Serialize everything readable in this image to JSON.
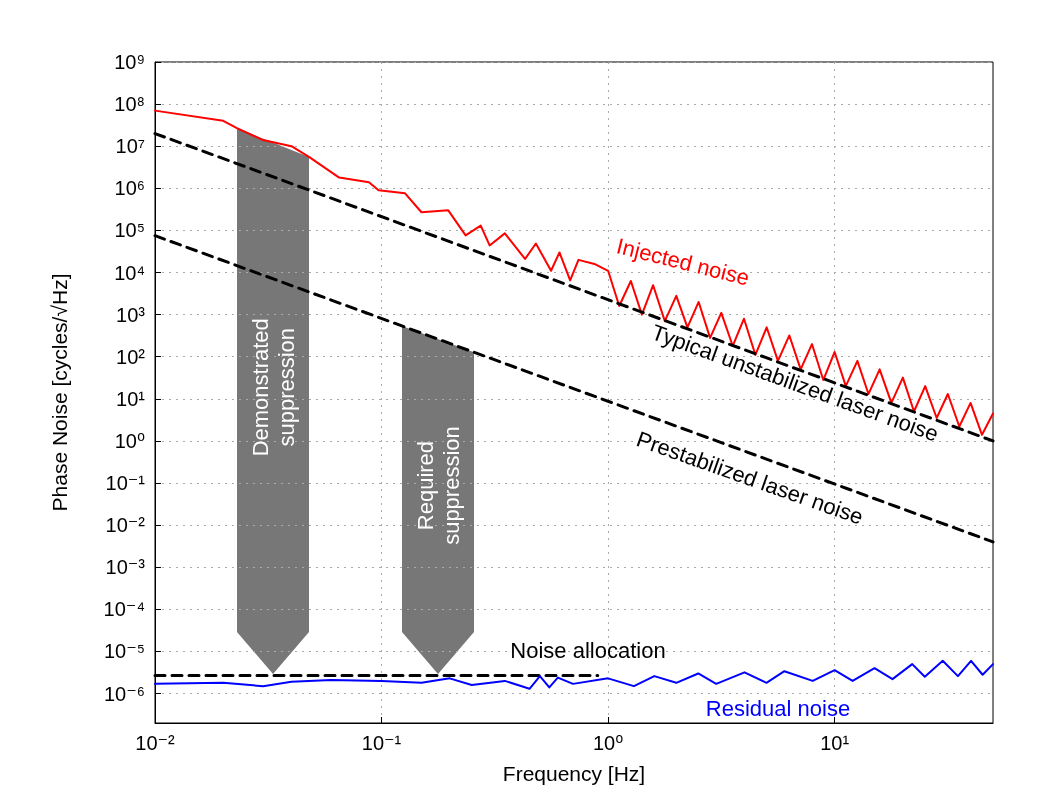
{
  "chart_data": {
    "type": "line",
    "xlabel": "Frequency [Hz]",
    "ylabel": "Phase Noise [cycles/√Hz]",
    "log": "xy",
    "grid": true,
    "legend": false,
    "marker": "none",
    "xlim": [
      0.01,
      50
    ],
    "xticks": [
      {
        "value": 0.01,
        "label": "10⁻²"
      },
      {
        "value": 0.1,
        "label": "10⁻¹"
      },
      {
        "value": 1,
        "label": "10⁰"
      },
      {
        "value": 10,
        "label": "10¹"
      }
    ],
    "ylim": [
      2e-07,
      1000000000.0
    ],
    "yticks": [
      {
        "value": 1e-06,
        "label": "10⁻⁶"
      },
      {
        "value": 1e-05,
        "label": "10⁻⁵"
      },
      {
        "value": 0.0001,
        "label": "10⁻⁴"
      },
      {
        "value": 0.001,
        "label": "10⁻³"
      },
      {
        "value": 0.01,
        "label": "10⁻²"
      },
      {
        "value": 0.1,
        "label": "10⁻¹"
      },
      {
        "value": 1,
        "label": "10⁰"
      },
      {
        "value": 10,
        "label": "10¹"
      },
      {
        "value": 100,
        "label": "10²"
      },
      {
        "value": 1000,
        "label": "10³"
      },
      {
        "value": 10000.0,
        "label": "10⁴"
      },
      {
        "value": 100000.0,
        "label": "10⁵"
      },
      {
        "value": 1000000.0,
        "label": "10⁶"
      },
      {
        "value": 10000000.0,
        "label": "10⁷"
      },
      {
        "value": 100000000.0,
        "label": "10⁸"
      },
      {
        "value": 1000000000.0,
        "label": "10⁹"
      }
    ],
    "series": [
      {
        "name": "Injected noise",
        "color": "#ff0000",
        "line_style": "solid",
        "x": [
          0.01,
          0.02,
          0.023,
          0.03,
          0.04,
          0.048,
          0.065,
          0.088,
          0.097,
          0.127,
          0.15,
          0.197,
          0.235,
          0.274,
          0.3,
          0.35,
          0.43,
          0.48,
          0.56,
          0.61,
          0.68,
          0.74,
          0.87,
          1,
          1.12,
          1.26,
          1.41,
          1.58,
          1.78,
          2,
          2.24,
          2.51,
          2.82,
          3.16,
          3.55,
          3.98,
          4.47,
          5.01,
          5.62,
          6.31,
          7.08,
          7.94,
          8.91,
          10,
          11.2,
          12.6,
          14.1,
          15.8,
          17.8,
          20,
          22.4,
          25.1,
          28.2,
          31.6,
          35.5,
          39.8,
          44.7,
          50
        ],
        "values": [
          70000000.0,
          40000000.0,
          27000000.0,
          14000000.0,
          10000000.0,
          5500000.0,
          1800000.0,
          1400000.0,
          900000.0,
          760000.0,
          270000.0,
          300000.0,
          76000.0,
          130000.0,
          44000.0,
          85000.0,
          21000.0,
          49000.0,
          11000.0,
          30000.0,
          6500.0,
          20000.0,
          16000.0,
          11000.0,
          1600.0,
          6300.0,
          1000.0,
          5000.0,
          700,
          2800,
          500,
          2000,
          280,
          1100,
          180,
          800,
          110,
          500,
          80,
          320,
          50,
          200,
          28,
          130,
          20,
          80,
          13,
          50,
          8,
          32,
          5,
          20,
          3.5,
          13,
          2.2,
          8,
          1.4,
          4.5
        ]
      },
      {
        "name": "Typical unstabilized laser noise",
        "color": "#000000",
        "line_style": "dashed",
        "x": [
          0.01,
          50
        ],
        "values": [
          20000000.0,
          1
        ]
      },
      {
        "name": "Prestabilized laser noise",
        "color": "#000000",
        "line_style": "dashed",
        "x": [
          0.01,
          50
        ],
        "values": [
          75000.0,
          0.004
        ]
      },
      {
        "name": "Noise allocation",
        "color": "#000000",
        "line_style": "dashed",
        "x": [
          0.01,
          0.9
        ],
        "values": [
          2.7e-06,
          2.7e-06
        ]
      },
      {
        "name": "Residual noise",
        "color": "#0000ff",
        "line_style": "solid",
        "x": [
          0.01,
          0.02,
          0.03,
          0.04,
          0.06,
          0.1,
          0.15,
          0.2,
          0.25,
          0.35,
          0.45,
          0.5,
          0.55,
          0.6,
          0.7,
          1,
          1.3,
          1.6,
          2,
          2.5,
          3,
          4,
          5,
          6,
          8,
          10,
          12,
          15,
          18,
          22,
          25,
          30,
          35,
          40,
          45,
          50
        ],
        "values": [
          1.7e-06,
          1.8e-06,
          1.5e-06,
          1.9e-06,
          2.1e-06,
          2e-06,
          1.8e-06,
          2.3e-06,
          1.6e-06,
          2e-06,
          1.3e-06,
          2.6e-06,
          1.4e-06,
          2.4e-06,
          1.7e-06,
          2.3e-06,
          1.5e-06,
          2.6e-06,
          1.8e-06,
          3e-06,
          1.7e-06,
          3.2e-06,
          1.8e-06,
          3.4e-06,
          2e-06,
          3.6e-06,
          2e-06,
          4e-06,
          2.2e-06,
          5e-06,
          2.5e-06,
          6e-06,
          2.6e-06,
          6e-06,
          2.8e-06,
          5e-06
        ]
      }
    ],
    "annotations": [
      "Demonstrated\nsuppression",
      "Required\nsuppression"
    ]
  }
}
